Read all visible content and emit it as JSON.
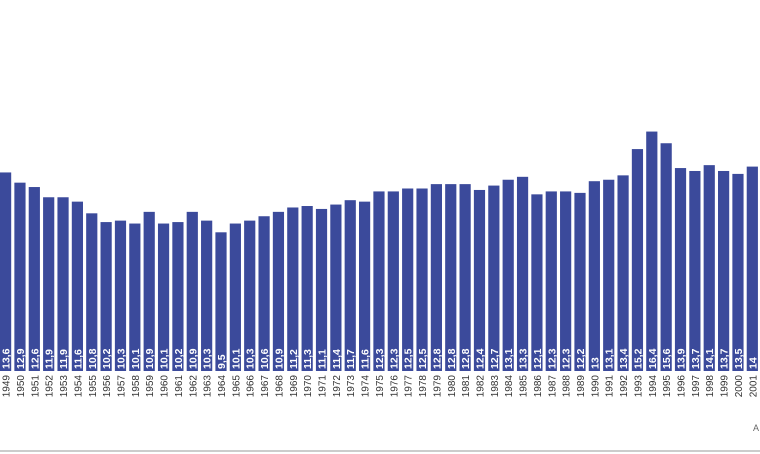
{
  "chart_data": {
    "type": "bar",
    "title": "",
    "xlabel": "",
    "ylabel": "",
    "ylim": [
      0,
      18.5
    ],
    "grid": false,
    "legend": "none",
    "bar_color": "#3b4a9b",
    "value_label_color": "#ffffff",
    "categories": [
      "1949",
      "1950",
      "1951",
      "1952",
      "1953",
      "1954",
      "1955",
      "1956",
      "1957",
      "1958",
      "1959",
      "1960",
      "1961",
      "1962",
      "1963",
      "1964",
      "1965",
      "1966",
      "1967",
      "1968",
      "1969",
      "1970",
      "1971",
      "1972",
      "1973",
      "1974",
      "1975",
      "1976",
      "1977",
      "1978",
      "1979",
      "1980",
      "1981",
      "1982",
      "1983",
      "1984",
      "1985",
      "1986",
      "1987",
      "1988",
      "1989",
      "1990",
      "1991",
      "1992",
      "1993",
      "1994",
      "1995",
      "1996",
      "1997",
      "1998",
      "1999",
      "2000",
      "2001"
    ],
    "value_labels": [
      "13,6",
      "12,9",
      "12,6",
      "11,9",
      "11,9",
      "11,6",
      "10,8",
      "10,2",
      "10,3",
      "10,1",
      "10,9",
      "10,1",
      "10,2",
      "10,9",
      "10,3",
      "9,5",
      "10,1",
      "10,3",
      "10,6",
      "10,9",
      "11,2",
      "11,3",
      "11,1",
      "11,4",
      "11,7",
      "11,6",
      "12,3",
      "12,3",
      "12,5",
      "12,5",
      "12,8",
      "12,8",
      "12,8",
      "12,4",
      "12,7",
      "13,1",
      "13,3",
      "12,1",
      "12,3",
      "12,3",
      "12,2",
      "13",
      "13,1",
      "13,4",
      "15,2",
      "16,4",
      "15,6",
      "13,9",
      "13,7",
      "14,1",
      "13,7",
      "13,5",
      "14"
    ],
    "values": [
      13.6,
      12.9,
      12.6,
      11.9,
      11.9,
      11.6,
      10.8,
      10.2,
      10.3,
      10.1,
      10.9,
      10.1,
      10.2,
      10.9,
      10.3,
      9.5,
      10.1,
      10.3,
      10.6,
      10.9,
      11.2,
      11.3,
      11.1,
      11.4,
      11.7,
      11.6,
      12.3,
      12.3,
      12.5,
      12.5,
      12.8,
      12.8,
      12.8,
      12.4,
      12.7,
      13.1,
      13.3,
      12.1,
      12.3,
      12.3,
      12.2,
      13,
      13.1,
      13.4,
      15.2,
      16.4,
      15.6,
      13.9,
      13.7,
      14.1,
      13.7,
      13.5,
      14
    ]
  },
  "partial_note": "A"
}
